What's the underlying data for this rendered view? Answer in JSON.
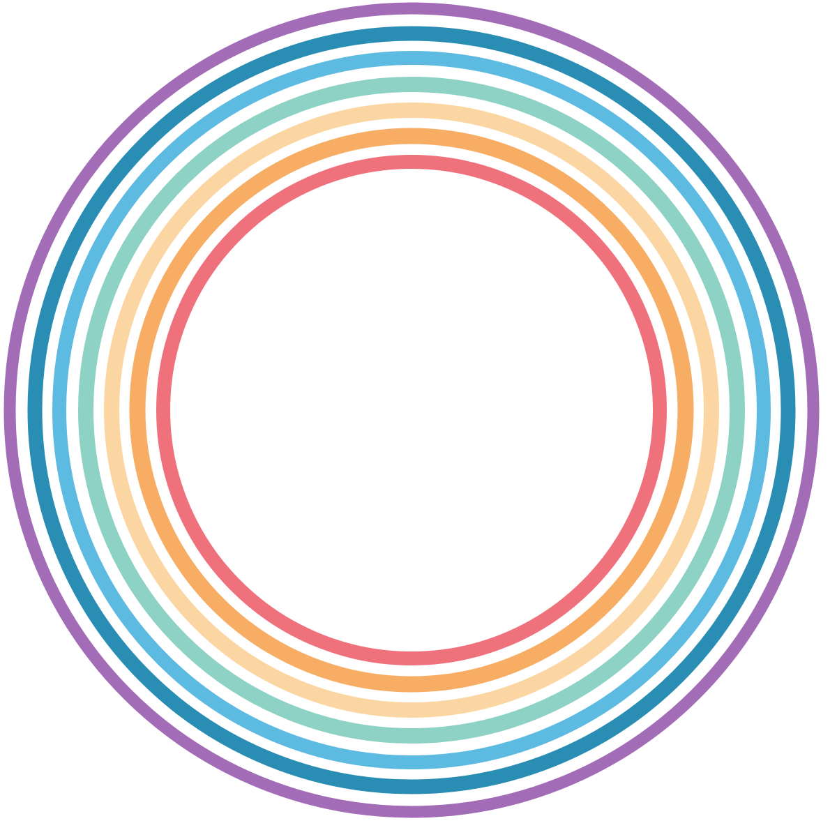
{
  "rings": [
    {
      "name": "ring-purple",
      "color": "#a26db6"
    },
    {
      "name": "ring-dark-blue",
      "color": "#2a8db3"
    },
    {
      "name": "ring-light-blue",
      "color": "#5dbae0"
    },
    {
      "name": "ring-mint",
      "color": "#8dd2c4"
    },
    {
      "name": "ring-peach",
      "color": "#fcd6a2"
    },
    {
      "name": "ring-orange",
      "color": "#f7ad63"
    },
    {
      "name": "ring-coral",
      "color": "#ef717c"
    }
  ]
}
